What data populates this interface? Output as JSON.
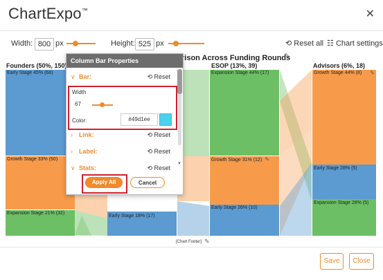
{
  "header": {
    "brand": "ChartExpo",
    "trademark": "™",
    "close_symbol": "✕"
  },
  "controls": {
    "width_label": "Width:",
    "width_value": "800",
    "width_unit": "px",
    "height_label": "Height:",
    "height_value": "525",
    "height_unit": "px",
    "reset_all": "Reset all",
    "chart_settings": "Chart settings"
  },
  "chart": {
    "title": "rison Across Funding Rounds",
    "footer": "[Chart Footer]",
    "columns": [
      {
        "title": "Founders (50%, 150)",
        "nodes": [
          "Early Stage 45% (68)",
          "Growth Stage 33% (50)",
          "Expansion Stage 21% (32)"
        ]
      },
      {
        "title": "",
        "nodes": [
          "Early Stage 18% (17)"
        ]
      },
      {
        "title": "ESOP (13%, 39)",
        "nodes": [
          "Expansion Stage 44% (17)",
          "Growth Stage 31% (12)",
          "Early Stage 26% (10)"
        ]
      },
      {
        "title": "Advisors (6%, 18)",
        "nodes": [
          "Growth Stage 44% (8)",
          "Early Stage 28% (5)",
          "Expansion Stage 28% (5)"
        ]
      }
    ],
    "colors": {
      "blue": "#5b9bd1",
      "orange": "#f79b4a",
      "green": "#6cbf64"
    }
  },
  "panel": {
    "title": "Column Bar Properties",
    "bar_label": "Bar:",
    "reset": "Reset",
    "width_label": "Width",
    "width_value": "67",
    "color_label": "Color:",
    "color_value": "#49d1ee",
    "color_swatch": "#49d1ee",
    "link_label": "Link:",
    "label_label": "Label:",
    "stats_label": "Stats:",
    "apply": "Apply All",
    "cancel": "Cancel"
  },
  "footer": {
    "save": "Save",
    "close": "Close"
  }
}
